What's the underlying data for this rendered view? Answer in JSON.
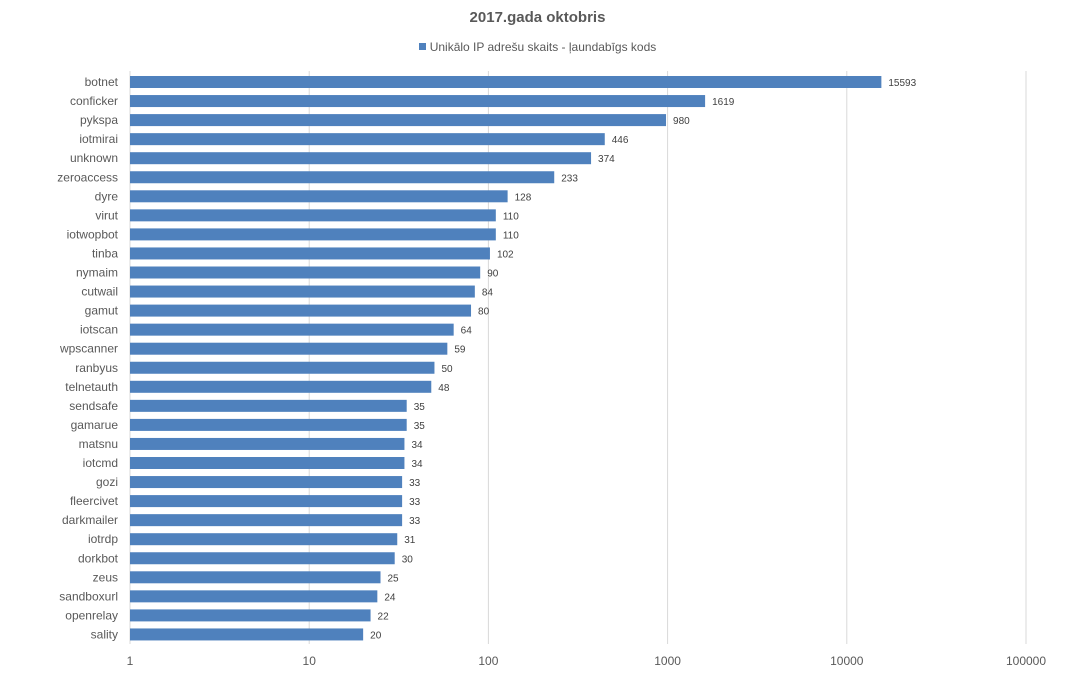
{
  "chart_data": {
    "type": "bar",
    "orientation": "horizontal",
    "title": "2017.gada oktobris",
    "legend_position": "top",
    "x_scale": "log",
    "xlim": [
      1,
      100000
    ],
    "x_ticks": [
      "1",
      "10",
      "100",
      "1000",
      "10000",
      "100000"
    ],
    "grid": true,
    "bar_color": "#4f81bd",
    "categories": [
      "botnet",
      "conficker",
      "pykspa",
      "iotmirai",
      "unknown",
      "zeroaccess",
      "dyre",
      "virut",
      "iotwopbot",
      "tinba",
      "nymaim",
      "cutwail",
      "gamut",
      "iotscan",
      "wpscanner",
      "ranbyus",
      "telnetauth",
      "sendsafe",
      "gamarue",
      "matsnu",
      "iotcmd",
      "gozi",
      "fleercivet",
      "darkmailer",
      "iotrdp",
      "dorkbot",
      "zeus",
      "sandboxurl",
      "openrelay",
      "sality"
    ],
    "series": [
      {
        "name": "Unikālo IP adrešu skaits -  ļaundabīgs kods",
        "values": [
          15593,
          1619,
          980,
          446,
          374,
          233,
          128,
          110,
          110,
          102,
          90,
          84,
          80,
          64,
          59,
          50,
          48,
          35,
          35,
          34,
          34,
          33,
          33,
          33,
          31,
          30,
          25,
          24,
          22,
          20
        ]
      }
    ]
  }
}
